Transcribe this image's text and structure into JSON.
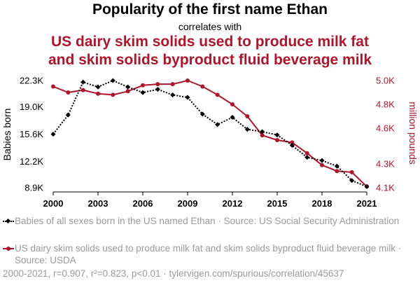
{
  "header": {
    "title": "Popularity of the first name Ethan",
    "subtitle": "correlates with",
    "title2_line1": "US dairy skim solids used to produce milk fat",
    "title2_line2": "and skim solids byproduct fluid beverage milk"
  },
  "legend": {
    "series1": "Babies of all sexes born in the US named Ethan · Source: US Social Security Administration",
    "series2": "US dairy skim solids used to produce milk fat and skim solids byproduct fluid beverage milk · Source: USDA"
  },
  "footer": "2000-2021, r=0.907, r²=0.823, p<0.01 · tylervigen.com/spurious/correlation/45637",
  "colors": {
    "series1": "#000000",
    "series2": "#b0142a",
    "axis": "#000000"
  },
  "chart_data": {
    "type": "line",
    "x": [
      2000,
      2001,
      2002,
      2003,
      2004,
      2005,
      2006,
      2007,
      2008,
      2009,
      2010,
      2011,
      2012,
      2013,
      2014,
      2015,
      2016,
      2017,
      2018,
      2019,
      2020,
      2021
    ],
    "xticks": [
      "2000",
      "2003",
      "2006",
      "2009",
      "2012",
      "2015",
      "2018",
      "2021"
    ],
    "ylabel_left": "Babies born",
    "ylabel_right": "million pounds",
    "left_axis": {
      "ticks": [
        "8.9K",
        "12.2K",
        "15.6K",
        "19.0K",
        "22.3K"
      ],
      "tick_values": [
        8900,
        12200,
        15600,
        19000,
        22300
      ],
      "range": [
        8900,
        22300
      ]
    },
    "right_axis": {
      "ticks": [
        "4.1K",
        "4.3K",
        "4.6K",
        "4.8K",
        "5.0K"
      ],
      "tick_values": [
        4100,
        4300,
        4600,
        4800,
        5000
      ],
      "range": [
        4100,
        5000
      ]
    },
    "series": [
      {
        "name": "Babies of all sexes born in the US named Ethan",
        "axis": "left",
        "style": "dotted",
        "marker": "diamond",
        "values": [
          15600,
          18000,
          22100,
          21500,
          22300,
          21500,
          20800,
          21200,
          20500,
          20200,
          18100,
          16800,
          17700,
          16200,
          15900,
          15500,
          14200,
          12700,
          12300,
          11600,
          9800,
          9050
        ]
      },
      {
        "name": "US dairy skim solids used to produce milk fat and skim solids byproduct fluid beverage milk",
        "axis": "right",
        "style": "solid",
        "marker": "circle",
        "values": [
          4950,
          4900,
          4920,
          4890,
          4880,
          4910,
          4960,
          4970,
          4970,
          5000,
          4950,
          4880,
          4800,
          4700,
          4540,
          4500,
          4480,
          4390,
          4290,
          4240,
          4230,
          4110
        ]
      }
    ]
  }
}
